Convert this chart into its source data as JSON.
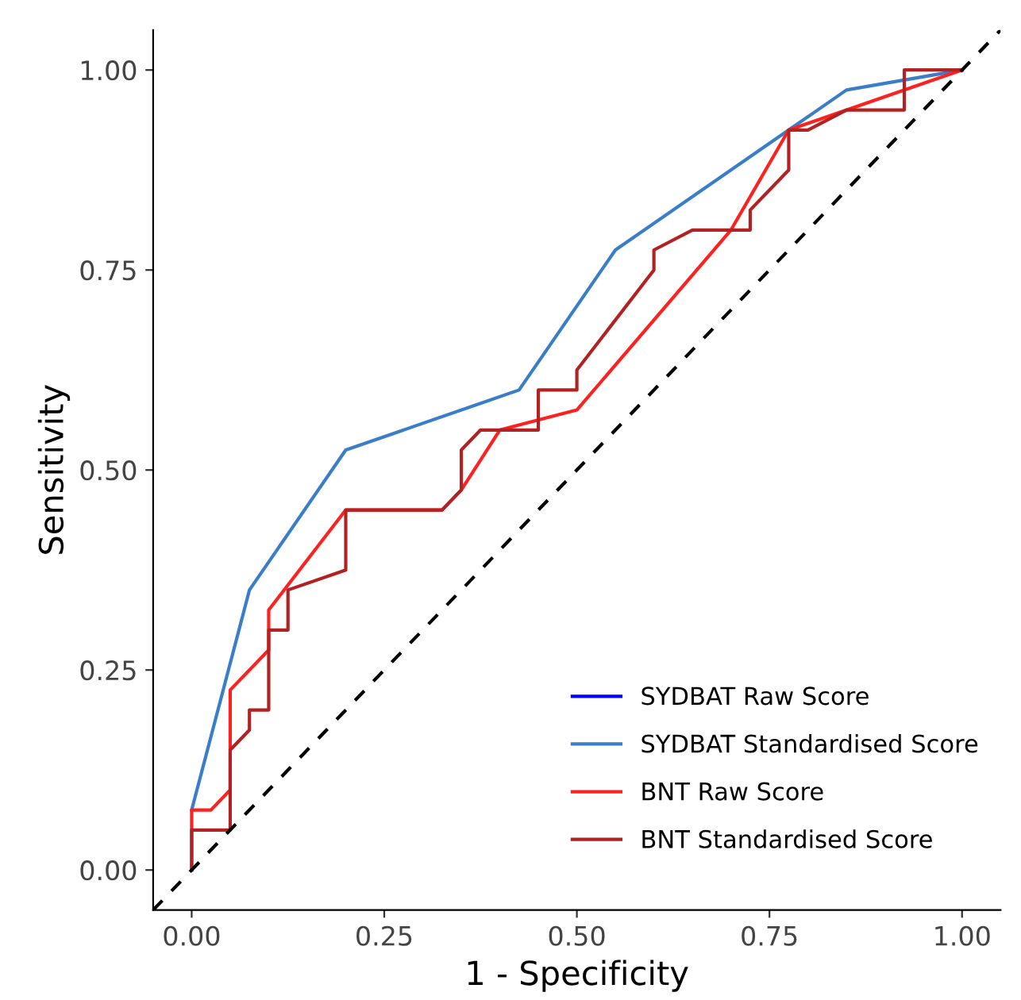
{
  "chart_data": {
    "type": "line",
    "xlabel": "1 - Specificity",
    "ylabel": "Sensitivity",
    "xlim": [
      -0.05,
      1.05
    ],
    "ylim": [
      -0.05,
      1.05
    ],
    "xticks": [
      {
        "value": 0,
        "label": "0.00"
      },
      {
        "value": 0.25,
        "label": "0.25"
      },
      {
        "value": 0.5,
        "label": "0.50"
      },
      {
        "value": 0.75,
        "label": "0.75"
      },
      {
        "value": 1,
        "label": "1.00"
      }
    ],
    "yticks": [
      {
        "value": 0,
        "label": "0.00"
      },
      {
        "value": 0.25,
        "label": "0.25"
      },
      {
        "value": 0.5,
        "label": "0.50"
      },
      {
        "value": 0.75,
        "label": "0.75"
      },
      {
        "value": 1,
        "label": "1.00"
      }
    ],
    "grid": false,
    "legend": "bottom right",
    "marker": "none",
    "series": [
      {
        "name": "SYDBAT Raw Score",
        "color": "#0000ff"
      },
      {
        "name": "SYDBAT Standardised Score",
        "color": "#3a7dc9",
        "x": [
          0,
          0.075,
          0.2,
          0.425,
          0.55,
          0.775,
          0.85,
          1
        ],
        "values": [
          0.075,
          0.35,
          0.525,
          0.6,
          0.775,
          0.925,
          0.975,
          1
        ]
      },
      {
        "name": "BNT Raw Score",
        "color": "#ff2020",
        "x": [
          0,
          0,
          0.025,
          0.05,
          0.05,
          0.1,
          0.1,
          0.2,
          0.325,
          0.35,
          0.4,
          0.5,
          0.7,
          0.775,
          1
        ],
        "values": [
          0,
          0.075,
          0.075,
          0.1,
          0.225,
          0.275,
          0.325,
          0.45,
          0.45,
          0.475,
          0.55,
          0.575,
          0.8,
          0.925,
          1
        ]
      },
      {
        "name": "BNT Standardised Score",
        "color": "#b22222",
        "x": [
          0,
          0,
          0.05,
          0.05,
          0.075,
          0.075,
          0.1,
          0.1,
          0.125,
          0.125,
          0.2,
          0.2,
          0.325,
          0.35,
          0.35,
          0.375,
          0.45,
          0.45,
          0.5,
          0.5,
          0.6,
          0.6,
          0.65,
          0.725,
          0.725,
          0.775,
          0.775,
          0.8,
          0.85,
          0.925,
          0.925,
          1
        ],
        "values": [
          0,
          0.05,
          0.05,
          0.15,
          0.175,
          0.2,
          0.2,
          0.3,
          0.3,
          0.35,
          0.375,
          0.45,
          0.45,
          0.475,
          0.525,
          0.55,
          0.55,
          0.6,
          0.6,
          0.625,
          0.75,
          0.775,
          0.8,
          0.8,
          0.825,
          0.875,
          0.925,
          0.925,
          0.95,
          0.95,
          1,
          1
        ]
      },
      {
        "color": "#000000",
        "line_style": "dashed",
        "x": [
          -0.05,
          1.05
        ],
        "values": [
          -0.05,
          1.05
        ]
      }
    ]
  }
}
